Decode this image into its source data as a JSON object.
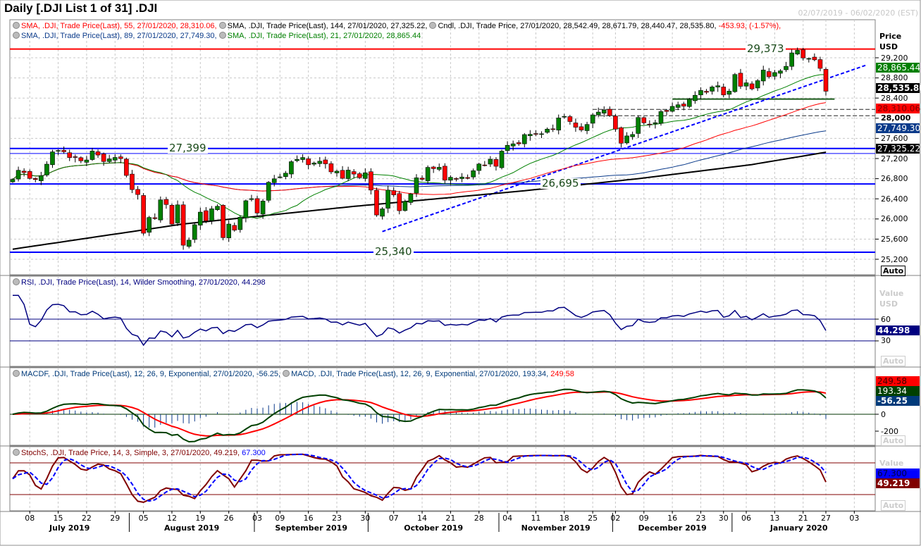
{
  "header": {
    "title": "Daily [.DJI List 1 of 31] .DJI",
    "date_range": "02/07/2019 - 06/02/2020 (EST)"
  },
  "legends": {
    "price_line1": [
      {
        "text": "SMA, .DJI, Trade Price(Last),  55, 27/01/2020, 28,310.06,",
        "color": "#ff0000"
      },
      {
        "text": "SMA, .DJI, Trade Price(Last),  144, 27/01/2020, 27,325.22,",
        "color": "#000000"
      },
      {
        "text": "Cndl, .DJI, Trade Price, 27/01/2020, 28,542.49, 28,671.79, 28,440.47, 28,535.80,",
        "color": "#000000"
      },
      {
        "text": "-453.93, (-1.57%),",
        "color": "#ff0000"
      }
    ],
    "price_line2": [
      {
        "text": "SMA, .DJI, Trade Price(Last),  89, 27/01/2020, 27,749.30,",
        "color": "#0a3a8a"
      },
      {
        "text": "SMA, .DJI, Trade Price(Last),  21, 27/01/2020, 28,865.44",
        "color": "#008000"
      }
    ],
    "rsi": [
      {
        "text": "RSI, .DJI, Trade Price(Last),  14, Wilder Smoothing, 27/01/2020, 44.298",
        "color": "#000080"
      }
    ],
    "macd": [
      {
        "text": "MACDF, .DJI, Trade Price(Last),  12, 26, 9, Exponential, 27/01/2020, -56.25,",
        "color": "#003a7a"
      },
      {
        "text": "MACD, .DJI, Trade Price(Last),  12, 26, 9, Exponential, 27/01/2020, 193.34, ",
        "color": "#003a7a"
      },
      {
        "text": "249.58",
        "color": "#ff0000"
      }
    ],
    "stoch": [
      {
        "text": "StochS, .DJI, Trade Price,  14, 3, Simple, 3, 27/01/2020, 49.219, ",
        "color": "#800000"
      },
      {
        "text": "67.300",
        "color": "#0000ff"
      }
    ]
  },
  "axes": {
    "price_header": [
      "Price",
      "USD"
    ],
    "price_ticks": [
      "29,200",
      "28,800",
      "28,400",
      "28,000",
      "27,600",
      "27,200",
      "26,800",
      "26,400",
      "26,000",
      "25,600",
      "25,200"
    ],
    "price_tick_values": [
      29200,
      28800,
      28400,
      28000,
      27600,
      27200,
      26800,
      26400,
      26000,
      25600,
      25200
    ],
    "rsi_header": [
      "Value",
      "USD"
    ],
    "rsi_ticks": [
      "60",
      "30"
    ],
    "rsi_tick_values": [
      60,
      30
    ],
    "macd_ticks": [
      "0",
      "-200"
    ],
    "macd_tick_values": [
      0,
      -200
    ],
    "stoch_header": "Value",
    "auto_label": "Auto"
  },
  "tags": {
    "sma21": {
      "text": "28,865.44",
      "bg": "#008000",
      "fg": "#ffffff",
      "value": 28865.44
    },
    "close": {
      "text": "28,535.80",
      "bg": "#000000",
      "fg": "#ffffff",
      "value": 28535.8
    },
    "sma55": {
      "text": "28,310.06",
      "bg": "#ff0000",
      "fg": "#800000",
      "value": 28310.06
    },
    "sma89": {
      "text": "27,749.30",
      "bg": "#0a3a8a",
      "fg": "#ffffff",
      "value": 27749.3
    },
    "sma144": {
      "text": "27,325.22",
      "bg": "#000000",
      "fg": "#ffffff",
      "value": 27325.22
    },
    "rsi": {
      "text": "44.298",
      "bg": "#000080",
      "fg": "#ffffff",
      "value": 44.298
    },
    "macd_signal": {
      "text": "249.58",
      "bg": "#ff0000",
      "fg": "#400000",
      "value": 249.58
    },
    "macd": {
      "text": "193.34",
      "bg": "#004000",
      "fg": "#ffffff",
      "value": 193.34
    },
    "macd_hist": {
      "text": "-56.25",
      "bg": "#003a7a",
      "fg": "#ffffff",
      "value": -56.25
    },
    "stoch_d": {
      "text": "67.300",
      "bg": "#0000ff",
      "fg": "#000040",
      "value": 67.3
    },
    "stoch_k": {
      "text": "49.219",
      "bg": "#800000",
      "fg": "#ffffff",
      "value": 49.219
    }
  },
  "levels": [
    {
      "label": "29,373",
      "value": 29373,
      "color": "#ff0000",
      "from": 0
    },
    {
      "label": "27,399",
      "value": 27399,
      "color": "#0000ff",
      "from": 0
    },
    {
      "label": "",
      "value": 27300,
      "color": "#0000ff",
      "from": 0
    },
    {
      "label": "26,695",
      "value": 26695,
      "color": "#0000ff",
      "from": 0
    },
    {
      "label": "25,340",
      "value": 25340,
      "color": "#0000ff",
      "from": 0
    }
  ],
  "time_axis": {
    "ticks": [
      {
        "l": "08",
        "i": 3
      },
      {
        "l": "15",
        "i": 8
      },
      {
        "l": "22",
        "i": 13
      },
      {
        "l": "29",
        "i": 18
      },
      {
        "l": "05",
        "i": 23
      },
      {
        "l": "12",
        "i": 28
      },
      {
        "l": "19",
        "i": 33
      },
      {
        "l": "26",
        "i": 38
      },
      {
        "l": "03",
        "i": 43
      },
      {
        "l": "09",
        "i": 47
      },
      {
        "l": "16",
        "i": 52
      },
      {
        "l": "23",
        "i": 57
      },
      {
        "l": "30",
        "i": 62
      },
      {
        "l": "07",
        "i": 67
      },
      {
        "l": "14",
        "i": 72
      },
      {
        "l": "21",
        "i": 77
      },
      {
        "l": "28",
        "i": 82
      },
      {
        "l": "04",
        "i": 87
      },
      {
        "l": "11",
        "i": 92
      },
      {
        "l": "18",
        "i": 97
      },
      {
        "l": "25",
        "i": 102
      },
      {
        "l": "02",
        "i": 106
      },
      {
        "l": "09",
        "i": 111
      },
      {
        "l": "16",
        "i": 116
      },
      {
        "l": "23",
        "i": 121
      },
      {
        "l": "30",
        "i": 125
      },
      {
        "l": "06",
        "i": 129
      },
      {
        "l": "13",
        "i": 134
      },
      {
        "l": "21",
        "i": 139
      },
      {
        "l": "27",
        "i": 143
      },
      {
        "l": "03",
        "i": 148
      }
    ],
    "months": [
      {
        "l": "July 2019",
        "a": -2,
        "b": 20.5
      },
      {
        "l": "August 2019",
        "a": 20.5,
        "b": 42.5
      },
      {
        "l": "September 2019",
        "a": 42.5,
        "b": 62.5
      },
      {
        "l": "October 2019",
        "a": 62.5,
        "b": 85.5
      },
      {
        "l": "November 2019",
        "a": 85.5,
        "b": 105.5
      },
      {
        "l": "December 2019",
        "a": 105.5,
        "b": 126.5
      },
      {
        "l": "January 2020",
        "a": 126.5,
        "b": 150
      }
    ]
  },
  "chart_data": {
    "type": "candlestick",
    "title": "Daily .DJI",
    "last_candle": {
      "date": "27/01/2020",
      "open": 28542.49,
      "high": 28671.79,
      "low": 28440.47,
      "close": 28535.8,
      "change": -453.93,
      "change_pct": -1.57
    },
    "closes": [
      26786,
      26966,
      26922,
      26806,
      26783,
      26860,
      27088,
      27332,
      27359,
      27335,
      27219,
      27222,
      27154,
      27171,
      27349,
      27269,
      27140,
      27192,
      27221,
      27198,
      26864,
      26583,
      26485,
      25717,
      26030,
      26008,
      26378,
      26287,
      25897,
      26280,
      25479,
      25579,
      25886,
      26136,
      25962,
      26202,
      26252,
      25629,
      25899,
      25778,
      26036,
      26362,
      26403,
      26118,
      26356,
      26728,
      26797,
      26835,
      26909,
      27137,
      27182,
      27220,
      27076,
      27111,
      27147,
      27095,
      26935,
      26949,
      26808,
      26970,
      26891,
      26820,
      26917,
      26573,
      26079,
      26201,
      26573,
      26478,
      26164,
      26347,
      26497,
      26817,
      26787,
      27024,
      26999,
      27026,
      26770,
      26827,
      26788,
      26833,
      26806,
      26958,
      27091,
      27071,
      27186,
      27046,
      27347,
      27462,
      27492,
      27492,
      27675,
      27681,
      27691,
      27691,
      27784,
      27782,
      28005,
      28036,
      27934,
      27821,
      27766,
      27876,
      28066,
      28122,
      28164,
      28051,
      27783,
      27503,
      27649,
      27677,
      28015,
      27909,
      27881,
      27911,
      28132,
      28135,
      28235,
      28267,
      28239,
      28377,
      28455,
      28551,
      28515,
      28621,
      28645,
      28462,
      28538,
      28868,
      28634,
      28703,
      28583,
      28745,
      28956,
      28824,
      28907,
      28940,
      29030,
      29297,
      29348,
      29196,
      29186,
      29160,
      28990,
      28536
    ],
    "sma144_keypoints": [
      [
        0,
        25400
      ],
      [
        30,
        25900
      ],
      [
        60,
        26250
      ],
      [
        90,
        26560
      ],
      [
        110,
        26800
      ],
      [
        130,
        27080
      ],
      [
        143,
        27325
      ]
    ],
    "trendline": {
      "from": [
        65,
        25750
      ],
      "to": [
        150,
        29050
      ]
    },
    "support_line": {
      "value": 28380,
      "from": 116,
      "to": 148
    },
    "dashed_levels": [
      {
        "value": 28175,
        "from": 102
      },
      {
        "value": 28050,
        "from": 102
      }
    ],
    "price_range": [
      25050,
      29550
    ],
    "rsi_range": [
      15,
      85
    ],
    "macd_range": [
      -360,
      480
    ],
    "stoch_range": [
      -5,
      105
    ]
  }
}
